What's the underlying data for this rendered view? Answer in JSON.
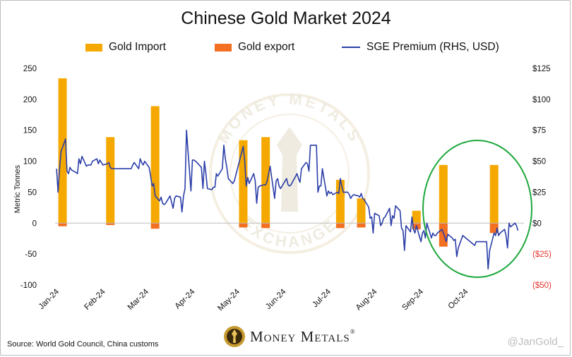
{
  "colors": {
    "import": "#f5a800",
    "export": "#f36f21",
    "premium": "#2b3ea8",
    "negative_label": "#e3342f",
    "circle": "#1ea83c"
  },
  "chart_data": {
    "type": "bar+line",
    "title": "Chinese Gold Market 2024",
    "ylabel": "Metric Tonnes",
    "ylim": [
      -100,
      250
    ],
    "y2lim": [
      -50,
      125
    ],
    "y_ticks": [
      "250",
      "200",
      "150",
      "100",
      "50",
      "0",
      "-50",
      "-100"
    ],
    "y2_ticks": [
      "$125",
      "$100",
      "$75",
      "$50",
      "$25",
      "$0",
      "($25)",
      "($50)"
    ],
    "x_ticks": [
      "Jan-24",
      "Feb-24",
      "Mar-24",
      "Apr-24",
      "May-24",
      "Jun-24",
      "Jul-24",
      "Aug-24",
      "Sep-24",
      "Oct-24"
    ],
    "legend": {
      "import": "Gold Import",
      "export": "Gold export",
      "premium": "SGE Premium (RHS, USD)"
    },
    "gold_import": [
      {
        "x": "2024-01-06",
        "value": 234
      },
      {
        "x": "2024-02-07",
        "value": 139
      },
      {
        "x": "2024-03-08",
        "value": 189
      },
      {
        "x": "2024-05-06",
        "value": 134
      },
      {
        "x": "2024-05-21",
        "value": 139
      },
      {
        "x": "2024-07-10",
        "value": 70
      },
      {
        "x": "2024-07-24",
        "value": 40
      },
      {
        "x": "2024-08-30",
        "value": 20
      },
      {
        "x": "2024-09-17",
        "value": 94
      },
      {
        "x": "2024-10-21",
        "value": 94
      }
    ],
    "gold_export": [
      {
        "x": "2024-01-06",
        "value": -5
      },
      {
        "x": "2024-02-07",
        "value": -3
      },
      {
        "x": "2024-03-08",
        "value": -9
      },
      {
        "x": "2024-05-06",
        "value": -7
      },
      {
        "x": "2024-05-21",
        "value": -8
      },
      {
        "x": "2024-07-10",
        "value": -8
      },
      {
        "x": "2024-07-24",
        "value": -7
      },
      {
        "x": "2024-08-30",
        "value": -10
      },
      {
        "x": "2024-09-17",
        "value": -38
      },
      {
        "x": "2024-10-21",
        "value": -16
      }
    ],
    "sge_premium": [
      [
        "2024-01-02",
        44
      ],
      [
        "2024-01-03",
        25
      ],
      [
        "2024-01-04",
        44
      ],
      [
        "2024-01-05",
        58
      ],
      [
        "2024-01-08",
        68
      ],
      [
        "2024-01-09",
        42
      ],
      [
        "2024-01-10",
        40
      ],
      [
        "2024-01-11",
        45
      ],
      [
        "2024-01-12",
        43
      ],
      [
        "2024-01-15",
        41
      ],
      [
        "2024-01-16",
        40
      ],
      [
        "2024-01-17",
        52
      ],
      [
        "2024-01-18",
        48
      ],
      [
        "2024-01-19",
        54
      ],
      [
        "2024-01-22",
        46
      ],
      [
        "2024-01-23",
        47
      ],
      [
        "2024-01-24",
        47
      ],
      [
        "2024-01-25",
        47
      ],
      [
        "2024-01-26",
        50
      ],
      [
        "2024-01-29",
        52
      ],
      [
        "2024-01-30",
        48
      ],
      [
        "2024-01-31",
        51
      ],
      [
        "2024-02-01",
        49
      ],
      [
        "2024-02-02",
        47
      ],
      [
        "2024-02-05",
        48
      ],
      [
        "2024-02-06",
        49
      ],
      [
        "2024-02-07",
        45
      ],
      [
        "2024-02-08",
        44
      ],
      [
        "2024-02-19",
        44
      ],
      [
        "2024-02-20",
        44
      ],
      [
        "2024-02-21",
        44
      ],
      [
        "2024-02-22",
        47
      ],
      [
        "2024-02-23",
        49
      ],
      [
        "2024-02-26",
        44
      ],
      [
        "2024-02-27",
        52
      ],
      [
        "2024-02-28",
        49
      ],
      [
        "2024-02-29",
        47
      ],
      [
        "2024-03-01",
        50
      ],
      [
        "2024-03-04",
        45
      ],
      [
        "2024-03-05",
        38
      ],
      [
        "2024-03-06",
        30
      ],
      [
        "2024-03-07",
        32
      ],
      [
        "2024-03-08",
        22
      ],
      [
        "2024-03-11",
        18
      ],
      [
        "2024-03-12",
        21
      ],
      [
        "2024-03-13",
        16
      ],
      [
        "2024-03-14",
        15
      ],
      [
        "2024-03-15",
        16
      ],
      [
        "2024-03-18",
        22
      ],
      [
        "2024-03-19",
        17
      ],
      [
        "2024-03-20",
        12
      ],
      [
        "2024-03-21",
        20
      ],
      [
        "2024-03-22",
        22
      ],
      [
        "2024-03-25",
        21
      ],
      [
        "2024-03-26",
        9
      ],
      [
        "2024-03-27",
        22
      ],
      [
        "2024-03-28",
        28
      ],
      [
        "2024-03-29",
        75
      ],
      [
        "2024-04-01",
        26
      ],
      [
        "2024-04-02",
        51
      ],
      [
        "2024-04-03",
        51
      ],
      [
        "2024-04-05",
        49
      ],
      [
        "2024-04-08",
        45
      ],
      [
        "2024-04-09",
        28
      ],
      [
        "2024-04-10",
        50
      ],
      [
        "2024-04-11",
        40
      ],
      [
        "2024-04-12",
        28
      ],
      [
        "2024-04-15",
        27
      ],
      [
        "2024-04-16",
        29
      ],
      [
        "2024-04-17",
        29
      ],
      [
        "2024-04-18",
        40
      ],
      [
        "2024-04-19",
        38
      ],
      [
        "2024-04-22",
        44
      ],
      [
        "2024-04-23",
        63
      ],
      [
        "2024-04-24",
        52
      ],
      [
        "2024-04-25",
        45
      ],
      [
        "2024-04-26",
        36
      ],
      [
        "2024-04-29",
        32
      ],
      [
        "2024-04-30",
        34
      ],
      [
        "2024-05-06",
        62
      ],
      [
        "2024-05-07",
        50
      ],
      [
        "2024-05-08",
        30
      ],
      [
        "2024-05-09",
        37
      ],
      [
        "2024-05-10",
        32
      ],
      [
        "2024-05-13",
        40
      ],
      [
        "2024-05-14",
        34
      ],
      [
        "2024-05-15",
        16
      ],
      [
        "2024-05-16",
        29
      ],
      [
        "2024-05-17",
        30
      ],
      [
        "2024-05-20",
        31
      ],
      [
        "2024-05-21",
        31
      ],
      [
        "2024-05-22",
        34
      ],
      [
        "2024-05-23",
        40
      ],
      [
        "2024-05-24",
        46
      ],
      [
        "2024-05-27",
        20
      ],
      [
        "2024-05-28",
        34
      ],
      [
        "2024-05-29",
        36
      ],
      [
        "2024-05-30",
        30
      ],
      [
        "2024-05-31",
        28
      ],
      [
        "2024-06-03",
        34
      ],
      [
        "2024-06-04",
        36
      ],
      [
        "2024-06-05",
        31
      ],
      [
        "2024-06-06",
        30
      ],
      [
        "2024-06-07",
        31
      ],
      [
        "2024-06-11",
        40
      ],
      [
        "2024-06-12",
        36
      ],
      [
        "2024-06-13",
        33
      ],
      [
        "2024-06-14",
        44
      ],
      [
        "2024-06-17",
        49
      ],
      [
        "2024-06-18",
        48
      ],
      [
        "2024-06-19",
        42
      ],
      [
        "2024-06-20",
        63
      ],
      [
        "2024-06-21",
        63
      ],
      [
        "2024-06-24",
        63
      ],
      [
        "2024-06-25",
        25
      ],
      [
        "2024-06-26",
        30
      ],
      [
        "2024-06-27",
        30
      ],
      [
        "2024-06-28",
        44
      ],
      [
        "2024-07-01",
        22
      ],
      [
        "2024-07-02",
        26
      ],
      [
        "2024-07-03",
        24
      ],
      [
        "2024-07-04",
        25
      ],
      [
        "2024-07-05",
        23
      ],
      [
        "2024-07-08",
        25
      ],
      [
        "2024-07-09",
        24
      ],
      [
        "2024-07-10",
        36
      ],
      [
        "2024-07-11",
        30
      ],
      [
        "2024-07-12",
        25
      ],
      [
        "2024-07-15",
        25
      ],
      [
        "2024-07-16",
        23
      ],
      [
        "2024-07-17",
        20
      ],
      [
        "2024-07-18",
        22
      ],
      [
        "2024-07-19",
        23
      ],
      [
        "2024-07-22",
        22
      ],
      [
        "2024-07-23",
        21
      ],
      [
        "2024-07-24",
        24
      ],
      [
        "2024-07-25",
        20
      ],
      [
        "2024-07-26",
        19
      ],
      [
        "2024-07-29",
        13
      ],
      [
        "2024-07-30",
        4
      ],
      [
        "2024-07-31",
        5
      ],
      [
        "2024-08-01",
        -8
      ],
      [
        "2024-08-02",
        8
      ],
      [
        "2024-08-05",
        6
      ],
      [
        "2024-08-06",
        -2
      ],
      [
        "2024-08-07",
        0
      ],
      [
        "2024-08-08",
        4
      ],
      [
        "2024-08-09",
        5
      ],
      [
        "2024-08-12",
        12
      ],
      [
        "2024-08-13",
        -2
      ],
      [
        "2024-08-14",
        6
      ],
      [
        "2024-08-15",
        4
      ],
      [
        "2024-08-16",
        14
      ],
      [
        "2024-08-19",
        10
      ],
      [
        "2024-08-20",
        -4
      ],
      [
        "2024-08-21",
        -6
      ],
      [
        "2024-08-22",
        -22
      ],
      [
        "2024-08-23",
        -2
      ],
      [
        "2024-08-26",
        -7
      ],
      [
        "2024-08-27",
        5
      ],
      [
        "2024-08-28",
        -5
      ],
      [
        "2024-08-29",
        -8
      ],
      [
        "2024-08-30",
        -2
      ],
      [
        "2024-09-02",
        -15
      ],
      [
        "2024-09-03",
        -8
      ],
      [
        "2024-09-04",
        -6
      ],
      [
        "2024-09-05",
        -12
      ],
      [
        "2024-09-06",
        0
      ],
      [
        "2024-09-09",
        -12
      ],
      [
        "2024-09-10",
        -8
      ],
      [
        "2024-09-11",
        -10
      ],
      [
        "2024-09-12",
        -10
      ],
      [
        "2024-09-13",
        -8
      ],
      [
        "2024-09-16",
        -5
      ],
      [
        "2024-09-18",
        -11
      ],
      [
        "2024-09-19",
        -15
      ],
      [
        "2024-09-20",
        -9
      ],
      [
        "2024-09-23",
        -12
      ],
      [
        "2024-09-24",
        -14
      ],
      [
        "2024-09-25",
        -13
      ],
      [
        "2024-09-26",
        -27
      ],
      [
        "2024-09-27",
        -20
      ],
      [
        "2024-09-30",
        -10
      ],
      [
        "2024-10-08",
        -18
      ],
      [
        "2024-10-09",
        -15
      ],
      [
        "2024-10-10",
        -15
      ],
      [
        "2024-10-11",
        -15
      ],
      [
        "2024-10-14",
        -15
      ],
      [
        "2024-10-15",
        -15
      ],
      [
        "2024-10-16",
        -15
      ],
      [
        "2024-10-17",
        -37
      ],
      [
        "2024-10-18",
        -22
      ],
      [
        "2024-10-21",
        -8
      ],
      [
        "2024-10-22",
        -10
      ],
      [
        "2024-10-23",
        -4
      ],
      [
        "2024-10-24",
        -10
      ],
      [
        "2024-10-25",
        -8
      ],
      [
        "2024-10-28",
        -5
      ],
      [
        "2024-10-29",
        -10
      ],
      [
        "2024-10-30",
        -20
      ],
      [
        "2024-10-31",
        0
      ],
      [
        "2024-11-01",
        -3
      ],
      [
        "2024-11-04",
        0
      ],
      [
        "2024-11-05",
        -2
      ],
      [
        "2024-11-06",
        -6
      ]
    ]
  },
  "footer": {
    "source": "Source: World Gold Council, China customs",
    "brand": "Money Metals",
    "brand_mark": "®",
    "handle": "@JanGold_"
  },
  "watermark": {
    "top_text": "MONEY METALS",
    "bottom_text": "EXCHANGE"
  }
}
